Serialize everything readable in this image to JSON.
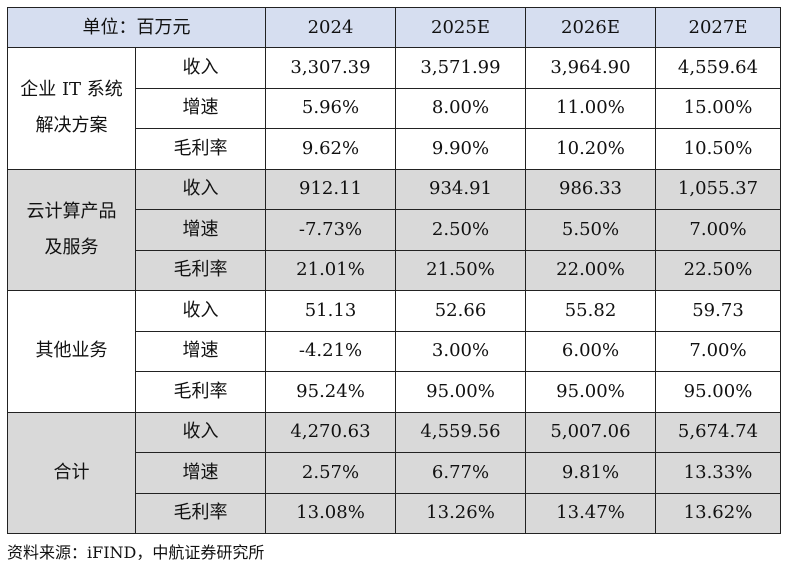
{
  "header": {
    "unit_label": "单位：百万元",
    "years": [
      "2024",
      "2025E",
      "2026E",
      "2027E"
    ]
  },
  "segments": [
    {
      "name": "企业 IT 系统解决方案",
      "shaded": false,
      "rows": [
        {
          "metric": "收入",
          "values": [
            "3,307.39",
            "3,571.99",
            "3,964.90",
            "4,559.64"
          ]
        },
        {
          "metric": "增速",
          "values": [
            "5.96%",
            "8.00%",
            "11.00%",
            "15.00%"
          ]
        },
        {
          "metric": "毛利率",
          "values": [
            "9.62%",
            "9.90%",
            "10.20%",
            "10.50%"
          ]
        }
      ]
    },
    {
      "name": "云计算产品及服务",
      "shaded": true,
      "rows": [
        {
          "metric": "收入",
          "values": [
            "912.11",
            "934.91",
            "986.33",
            "1,055.37"
          ]
        },
        {
          "metric": "增速",
          "values": [
            "-7.73%",
            "2.50%",
            "5.50%",
            "7.00%"
          ]
        },
        {
          "metric": "毛利率",
          "values": [
            "21.01%",
            "21.50%",
            "22.00%",
            "22.50%"
          ]
        }
      ]
    },
    {
      "name": "其他业务",
      "shaded": false,
      "rows": [
        {
          "metric": "收入",
          "values": [
            "51.13",
            "52.66",
            "55.82",
            "59.73"
          ]
        },
        {
          "metric": "增速",
          "values": [
            "-4.21%",
            "3.00%",
            "6.00%",
            "7.00%"
          ]
        },
        {
          "metric": "毛利率",
          "values": [
            "95.24%",
            "95.00%",
            "95.00%",
            "95.00%"
          ]
        }
      ]
    },
    {
      "name": "合计",
      "shaded": true,
      "rows": [
        {
          "metric": "收入",
          "values": [
            "4,270.63",
            "4,559.56",
            "5,007.06",
            "5,674.74"
          ]
        },
        {
          "metric": "增速",
          "values": [
            "2.57%",
            "6.77%",
            "9.81%",
            "13.33%"
          ]
        },
        {
          "metric": "毛利率",
          "values": [
            "13.08%",
            "13.26%",
            "13.47%",
            "13.62%"
          ]
        }
      ]
    }
  ],
  "source": "资料来源：iFIND，中航证券研究所",
  "colors": {
    "header_bg": "#d6def0",
    "shaded_bg": "#d9d9d9",
    "border": "#222222"
  }
}
